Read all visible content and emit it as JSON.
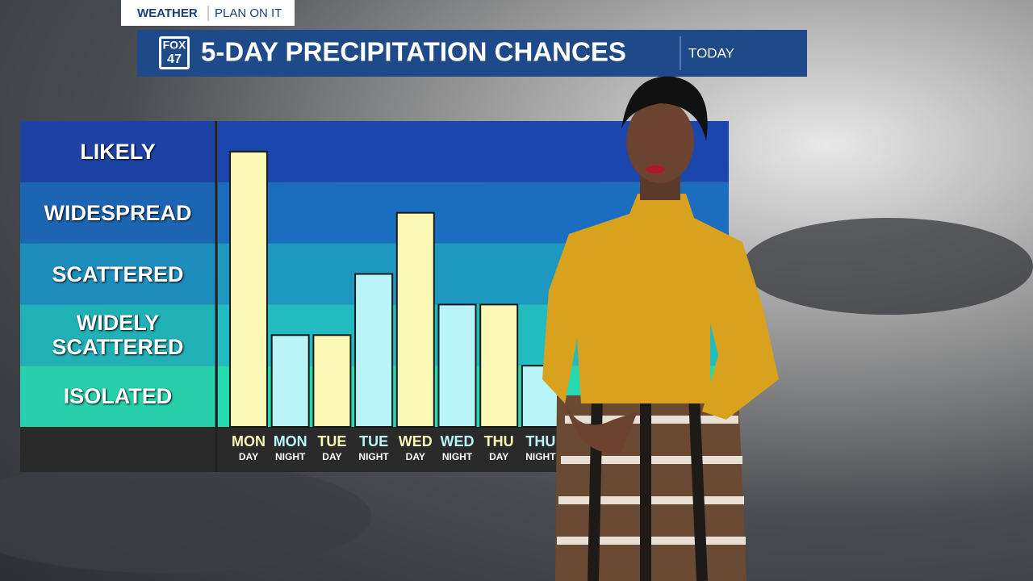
{
  "header": {
    "section": "WEATHER",
    "tagline": "PLAN ON IT",
    "logo": [
      "FOX",
      "47"
    ],
    "title": "5-DAY PRECIPITATION CHANCES",
    "badge": "TODAY"
  },
  "chart_data": {
    "type": "bar",
    "categories": [
      "MON",
      "MON",
      "TUE",
      "TUE",
      "WED",
      "WED",
      "THU",
      "THU"
    ],
    "sublabels": [
      "DAY",
      "NIGHT",
      "DAY",
      "NIGHT",
      "DAY",
      "NIGHT",
      "DAY",
      "NIGHT"
    ],
    "values": [
      4.5,
      1.5,
      1.5,
      2.5,
      3.5,
      2,
      2,
      1
    ],
    "colors": [
      "#fbf8b6",
      "#b9f5f8",
      "#fbf8b6",
      "#b9f5f8",
      "#fbf8b6",
      "#b9f5f8",
      "#fbf8b6",
      "#b9f5f8"
    ],
    "ylim": [
      0,
      5
    ],
    "yticks": [
      {
        "value": 0.5,
        "label": "ISOLATED"
      },
      {
        "value": 1.5,
        "label": "WIDELY SCATTERED"
      },
      {
        "value": 2.5,
        "label": "SCATTERED"
      },
      {
        "value": 3.5,
        "label": "WIDESPREAD"
      },
      {
        "value": 4.5,
        "label": "LIKELY"
      }
    ]
  }
}
